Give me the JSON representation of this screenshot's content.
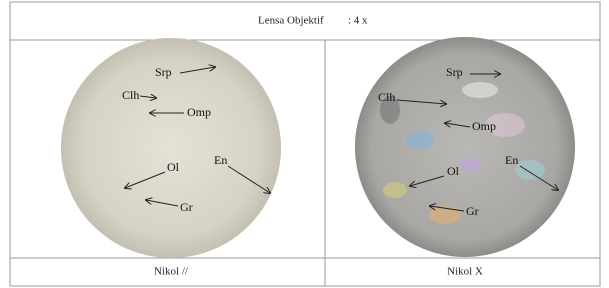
{
  "table": {
    "header": {
      "title": "Lensa Objektif",
      "magnification": ": 4 x"
    },
    "images": [
      {
        "labels": [
          "Srp",
          "Clh",
          "Omp",
          "Ol",
          "En",
          "Gr"
        ]
      },
      {
        "labels": [
          "Srp",
          "Clh",
          "Omp",
          "Ol",
          "En",
          "Gr"
        ]
      }
    ],
    "captions": [
      "Nikol //",
      "Nikol X"
    ]
  }
}
